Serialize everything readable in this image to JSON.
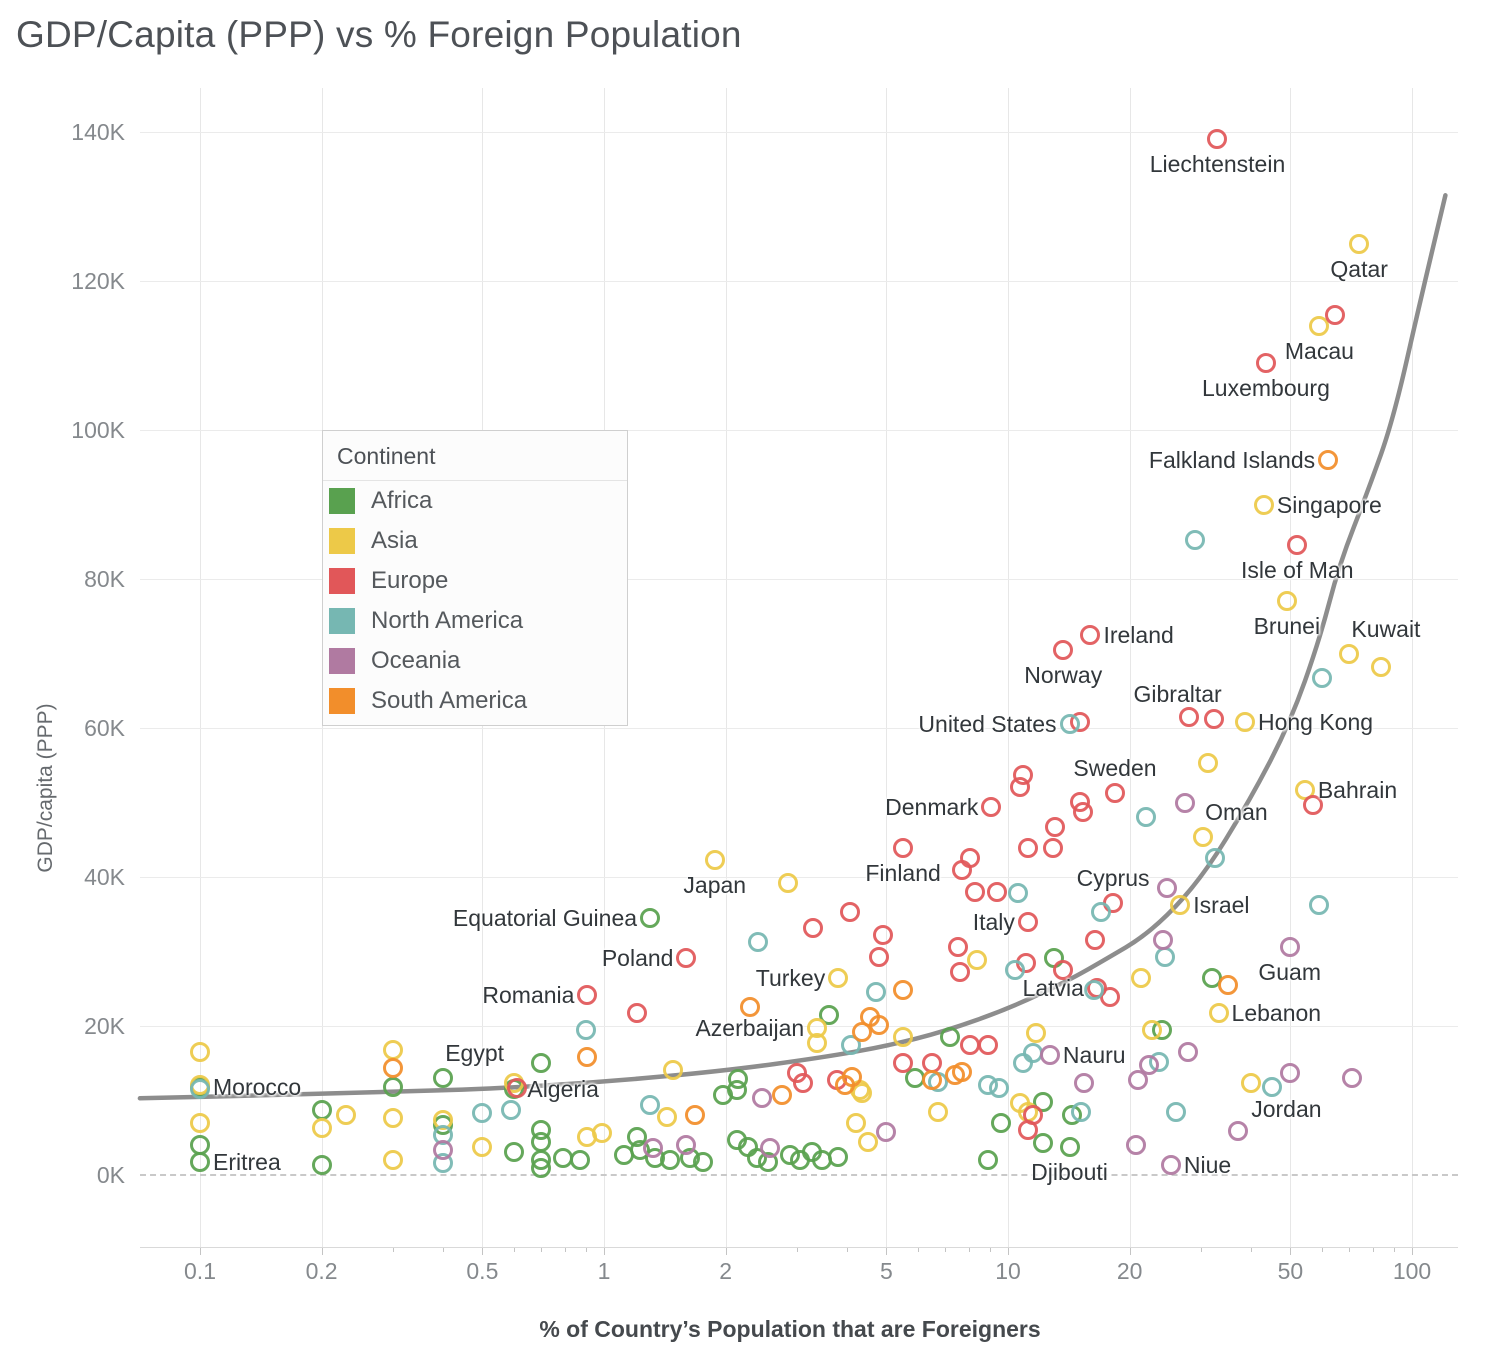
{
  "title": "GDP/Capita (PPP) vs % Foreign Population",
  "x_axis": {
    "label": "% of Country’s Population that are Foreigners",
    "ticks": [
      0.1,
      0.2,
      0.5,
      1,
      2,
      5,
      10,
      20,
      50,
      100
    ],
    "minor_ticks": [
      0.3,
      0.4,
      0.6,
      0.7,
      0.8,
      0.9,
      3,
      4,
      6,
      7,
      8,
      9,
      30,
      40,
      60,
      70,
      80,
      90
    ],
    "scale": "log"
  },
  "y_axis": {
    "label": "GDP/capita (PPP)",
    "ticks": [
      "0K",
      "20K",
      "40K",
      "60K",
      "80K",
      "100K",
      "120K",
      "140K"
    ]
  },
  "legend": {
    "title": "Continent",
    "items": [
      {
        "label": "Africa",
        "color": "#59A14F"
      },
      {
        "label": "Asia",
        "color": "#EDC948"
      },
      {
        "label": "Europe",
        "color": "#E15759"
      },
      {
        "label": "North America",
        "color": "#76B7B2"
      },
      {
        "label": "Oceania",
        "color": "#B07AA1"
      },
      {
        "label": "South America",
        "color": "#F28E2B"
      }
    ]
  },
  "chart_data": {
    "type": "scatter",
    "title": "GDP/Capita (PPP) vs % Foreign Population",
    "xlabel": "% of Country’s Population that are Foreigners",
    "ylabel": "GDP/capita (PPP)",
    "x_scale": "log",
    "xlim": [
      0.07,
      130
    ],
    "ylim_thousands": [
      -10,
      146
    ],
    "y_unit": "GDP per capita (PPP), thousands",
    "grid": true,
    "legend_position": "upper-left-inside",
    "trend_line": {
      "color": "#8d8d8d",
      "samples": [
        [
          0.071,
          10.3
        ],
        [
          0.15,
          10.7
        ],
        [
          0.3,
          11.2
        ],
        [
          0.5,
          11.5
        ],
        [
          1,
          12.5
        ],
        [
          2,
          14
        ],
        [
          3.5,
          15.8
        ],
        [
          5,
          17.3
        ],
        [
          7,
          19.3
        ],
        [
          10,
          22.3
        ],
        [
          14,
          26
        ],
        [
          17,
          28.6
        ],
        [
          22.5,
          32.5
        ],
        [
          30,
          39.6
        ],
        [
          40,
          50.6
        ],
        [
          50,
          60.8
        ],
        [
          59,
          71.8
        ],
        [
          66,
          81.9
        ],
        [
          78,
          92
        ],
        [
          90,
          101.5
        ],
        [
          105,
          117.5
        ],
        [
          121,
          131.5
        ]
      ]
    },
    "series": [
      {
        "name": "Africa",
        "color": "#59A14F",
        "points": [
          [
            1.3,
            34.5,
            "Equatorial Guinea",
            "left"
          ],
          [
            0.4,
            13,
            "Egypt",
            "above-right"
          ],
          [
            0.6,
            11.5,
            "Algeria",
            "right"
          ],
          [
            0.1,
            11.8,
            "Morocco",
            "right"
          ],
          [
            0.1,
            1.7,
            "Eritrea",
            "right"
          ],
          [
            14.2,
            3.8,
            "Djibouti",
            "below"
          ],
          [
            13,
            29.1
          ],
          [
            32,
            26.4
          ],
          [
            24,
            19.5
          ],
          [
            3.6,
            21.5
          ],
          [
            7.2,
            18.5
          ],
          [
            0.7,
            15
          ],
          [
            5.9,
            13
          ],
          [
            2.15,
            12.9
          ],
          [
            0.3,
            11.8
          ],
          [
            2.14,
            11.4
          ],
          [
            1.97,
            10.7
          ],
          [
            12.2,
            9.8
          ],
          [
            0.2,
            8.7
          ],
          [
            14.4,
            8.05
          ],
          [
            9.6,
            7
          ],
          [
            0.4,
            6.7
          ],
          [
            0.7,
            6
          ],
          [
            1.21,
            5.1
          ],
          [
            2.13,
            4.7
          ],
          [
            0.7,
            4.4
          ],
          [
            12.2,
            4.3
          ],
          [
            0.1,
            4
          ],
          [
            2.27,
            3.8
          ],
          [
            1.23,
            3.4
          ],
          [
            0.6,
            3.1
          ],
          [
            3.27,
            3.1
          ],
          [
            2.89,
            2.7
          ],
          [
            1.12,
            2.7
          ],
          [
            3.79,
            2.4
          ],
          [
            1.34,
            2.3
          ],
          [
            1.63,
            2.3
          ],
          [
            2.39,
            2.3
          ],
          [
            0.79,
            2.3
          ],
          [
            8.9,
            2
          ],
          [
            0.7,
            2
          ],
          [
            0.87,
            2
          ],
          [
            1.46,
            2
          ],
          [
            3.06,
            2
          ],
          [
            3.47,
            2
          ],
          [
            1.76,
            1.7
          ],
          [
            2.55,
            1.7
          ],
          [
            0.2,
            1.3
          ],
          [
            0.7,
            0.9
          ]
        ]
      },
      {
        "name": "Asia",
        "color": "#EDC948",
        "points": [
          [
            74,
            125,
            "Qatar",
            "below"
          ],
          [
            59,
            114,
            "Macau",
            "below"
          ],
          [
            43,
            90,
            "Singapore",
            "right"
          ],
          [
            49,
            77,
            "Brunei",
            "below"
          ],
          [
            70,
            70,
            "Kuwait",
            "above-right"
          ],
          [
            38.6,
            60.8,
            "Hong Kong",
            "right"
          ],
          [
            54.3,
            51.7,
            "Bahrain",
            "right"
          ],
          [
            30.4,
            45.4,
            "Oman",
            "above-right"
          ],
          [
            26.7,
            36.2,
            "Israel",
            "right"
          ],
          [
            1.88,
            42.3,
            "Japan",
            "below"
          ],
          [
            3.8,
            26.4,
            "Turkey",
            "left"
          ],
          [
            3.37,
            19.7,
            "Azerbaijan",
            "left"
          ],
          [
            33.2,
            21.8,
            "Lebanon",
            "right"
          ],
          [
            40,
            12.3,
            "Jordan",
            "below-right"
          ],
          [
            84,
            68.2
          ],
          [
            31.3,
            55.3
          ],
          [
            2.85,
            39.2
          ],
          [
            8.4,
            28.9
          ],
          [
            21.3,
            26.4
          ],
          [
            22.7,
            19.5
          ],
          [
            11.7,
            19.1
          ],
          [
            3.37,
            17.7
          ],
          [
            5.5,
            18.5
          ],
          [
            0.1,
            16.5
          ],
          [
            0.3,
            16.8
          ],
          [
            1.48,
            14.1
          ],
          [
            0.1,
            12.1
          ],
          [
            0.6,
            12.3
          ],
          [
            4.3,
            11.4
          ],
          [
            4.35,
            11
          ],
          [
            10.7,
            9.7
          ],
          [
            6.7,
            8.5
          ],
          [
            11.2,
            8.5
          ],
          [
            0.23,
            8.05
          ],
          [
            1.43,
            7.8
          ],
          [
            0.3,
            7.65
          ],
          [
            0.4,
            7.4
          ],
          [
            0.1,
            7
          ],
          [
            4.2,
            7
          ],
          [
            0.2,
            6.3
          ],
          [
            0.99,
            5.6
          ],
          [
            0.91,
            5.1
          ],
          [
            4.5,
            4.4
          ],
          [
            0.5,
            3.8
          ],
          [
            0.3,
            2
          ]
        ]
      },
      {
        "name": "Europe",
        "color": "#E15759",
        "points": [
          [
            33,
            139,
            "Liechtenstein",
            "below"
          ],
          [
            43.5,
            109,
            "Luxembourg",
            "below"
          ],
          [
            52,
            84.5,
            "Isle of Man",
            "below"
          ],
          [
            16,
            72.5,
            "Ireland",
            "right"
          ],
          [
            13.7,
            70.5,
            "Norway",
            "below"
          ],
          [
            32.3,
            61.2,
            "Gibraltar",
            "above-left"
          ],
          [
            18.4,
            51.3,
            "Sweden",
            "above"
          ],
          [
            9.1,
            49.4,
            "Denmark",
            "left"
          ],
          [
            5.5,
            43.9,
            "Finland",
            "below"
          ],
          [
            18.2,
            36.5,
            "Cyprus",
            "above"
          ],
          [
            11.2,
            34,
            "Italy",
            "left"
          ],
          [
            16.6,
            25.1,
            "Latvia",
            "left"
          ],
          [
            1.6,
            29.1,
            "Poland",
            "left"
          ],
          [
            0.91,
            24.2,
            "Romania",
            "left"
          ],
          [
            64.5,
            115.5
          ],
          [
            28.1,
            61.5
          ],
          [
            15.1,
            60.8
          ],
          [
            10.9,
            53.7
          ],
          [
            10.7,
            52.1
          ],
          [
            15.1,
            50.1
          ],
          [
            56.9,
            49.7
          ],
          [
            15.3,
            48.7
          ],
          [
            13.1,
            46.7
          ],
          [
            12.9,
            43.9
          ],
          [
            11.2,
            43.9
          ],
          [
            8.05,
            42.5
          ],
          [
            7.7,
            41
          ],
          [
            8.3,
            38
          ],
          [
            9.4,
            38
          ],
          [
            4.06,
            35.3
          ],
          [
            3.3,
            33.2
          ],
          [
            16.4,
            31.5
          ],
          [
            7.5,
            30.6
          ],
          [
            4.9,
            32.2
          ],
          [
            4.8,
            29.3
          ],
          [
            11.1,
            28.5
          ],
          [
            13.7,
            27.5
          ],
          [
            7.6,
            27.2
          ],
          [
            17.9,
            23.9
          ],
          [
            1.21,
            21.7
          ],
          [
            8.05,
            17.4
          ],
          [
            8.9,
            17.4
          ],
          [
            5.5,
            15
          ],
          [
            6.5,
            15
          ],
          [
            3,
            13.7
          ],
          [
            3.77,
            12.75
          ],
          [
            3.1,
            12.3
          ],
          [
            0.61,
            11.7
          ],
          [
            11.5,
            8.05
          ],
          [
            11.2,
            6
          ]
        ]
      },
      {
        "name": "North America",
        "color": "#76B7B2",
        "points": [
          [
            14.2,
            60.5,
            "United States",
            "left"
          ],
          [
            29,
            85.2
          ],
          [
            60,
            66.7
          ],
          [
            22,
            48
          ],
          [
            32.6,
            42.5
          ],
          [
            10.6,
            37.9
          ],
          [
            59,
            36.2
          ],
          [
            17,
            35.3
          ],
          [
            2.4,
            31.3
          ],
          [
            24.5,
            29.3
          ],
          [
            10.4,
            27.5
          ],
          [
            4.7,
            24.6
          ],
          [
            16.3,
            24.8
          ],
          [
            0.9,
            19.5
          ],
          [
            4.08,
            17.4
          ],
          [
            11.5,
            16.4
          ],
          [
            23.6,
            15.2
          ],
          [
            10.9,
            15
          ],
          [
            6.7,
            12.5
          ],
          [
            8.9,
            12.1
          ],
          [
            9.5,
            11.7
          ],
          [
            0.1,
            11.5
          ],
          [
            45,
            11.8
          ],
          [
            1.3,
            9.4
          ],
          [
            0.59,
            8.7
          ],
          [
            15.2,
            8.5
          ],
          [
            26,
            8.5
          ],
          [
            0.5,
            8.3
          ],
          [
            0.4,
            5.4
          ],
          [
            0.4,
            1.6
          ]
        ]
      },
      {
        "name": "Oceania",
        "color": "#B07AA1",
        "points": [
          [
            12.7,
            16.1,
            "Nauru",
            "right"
          ],
          [
            49.8,
            30.6,
            "Guam",
            "below"
          ],
          [
            25.3,
            1.4,
            "Niue",
            "right"
          ],
          [
            27.4,
            49.9
          ],
          [
            24.7,
            38.5
          ],
          [
            24.2,
            31.5
          ],
          [
            27.9,
            16.5
          ],
          [
            22.3,
            14.8
          ],
          [
            50,
            13.7
          ],
          [
            71,
            13
          ],
          [
            21,
            12.75
          ],
          [
            15.4,
            12.3
          ],
          [
            2.46,
            10.3
          ],
          [
            37,
            5.9
          ],
          [
            5,
            5.8
          ],
          [
            20.7,
            4
          ],
          [
            1.6,
            4
          ],
          [
            2.57,
            3.6
          ],
          [
            1.32,
            3.6
          ],
          [
            0.4,
            3.4
          ]
        ]
      },
      {
        "name": "South America",
        "color": "#F28E2B",
        "points": [
          [
            62,
            96,
            "Falkland Islands",
            "left"
          ],
          [
            35,
            25.5
          ],
          [
            5.5,
            24.8
          ],
          [
            2.3,
            22.5
          ],
          [
            4.55,
            21.2
          ],
          [
            4.8,
            20.1
          ],
          [
            4.35,
            19.2
          ],
          [
            0.3,
            14.4
          ],
          [
            7.4,
            13.4
          ],
          [
            7.7,
            13.8
          ],
          [
            6.5,
            12.75
          ],
          [
            4.1,
            13.2
          ],
          [
            3.96,
            12.1
          ],
          [
            2.76,
            10.7
          ],
          [
            1.68,
            8.05
          ],
          [
            0.91,
            15.8
          ]
        ]
      }
    ]
  }
}
